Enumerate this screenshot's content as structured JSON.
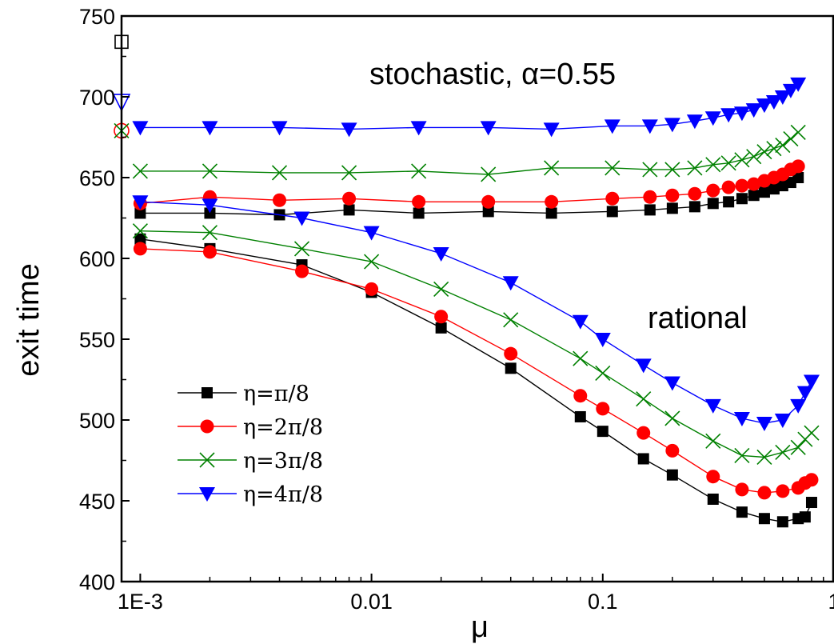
{
  "chart_data": {
    "type": "scatter",
    "xscale": "log",
    "xlabel": "μ",
    "ylabel": "exit time",
    "xlim": [
      0.00083,
      1
    ],
    "ylim": [
      400,
      750
    ],
    "xticks": [
      {
        "value": 0.001,
        "label": "1E-3"
      },
      {
        "value": 0.01,
        "label": "0.01"
      },
      {
        "value": 0.1,
        "label": "0.1"
      },
      {
        "value": 1,
        "label": "1"
      }
    ],
    "yticks": [
      400,
      450,
      500,
      550,
      600,
      650,
      700,
      750
    ],
    "annotations": [
      {
        "text": "stochastic, α=0.55",
        "near": "upper curves"
      },
      {
        "text": "rational",
        "near": "lower curves"
      }
    ],
    "series": [
      {
        "name": "η=π/8",
        "color": "#000000",
        "marker": "square",
        "stochastic": {
          "x": [
            0.001,
            0.002,
            0.004,
            0.008,
            0.016,
            0.032,
            0.06,
            0.11,
            0.16,
            0.2,
            0.25,
            0.3,
            0.35,
            0.4,
            0.45,
            0.5,
            0.55,
            0.6,
            0.65,
            0.7
          ],
          "y": [
            628,
            628,
            627,
            630,
            628,
            629,
            628,
            629,
            630,
            631,
            632,
            634,
            635,
            637,
            639,
            641,
            643,
            645,
            647,
            650
          ]
        },
        "rational": {
          "x": [
            0.001,
            0.002,
            0.005,
            0.01,
            0.02,
            0.04,
            0.08,
            0.1,
            0.15,
            0.2,
            0.3,
            0.4,
            0.5,
            0.6,
            0.7,
            0.75,
            0.8
          ],
          "y": [
            612,
            606,
            596,
            579,
            557,
            532,
            502,
            493,
            476,
            466,
            451,
            443,
            439,
            437,
            439,
            440,
            449
          ]
        },
        "single_point": {
          "x": 0.00083,
          "y": 734,
          "marker": "open-square"
        }
      },
      {
        "name": "η=2π/8",
        "color": "#ff0000",
        "marker": "circle",
        "stochastic": {
          "x": [
            0.001,
            0.002,
            0.004,
            0.008,
            0.016,
            0.032,
            0.06,
            0.11,
            0.16,
            0.2,
            0.25,
            0.3,
            0.35,
            0.4,
            0.45,
            0.5,
            0.55,
            0.6,
            0.65,
            0.7
          ],
          "y": [
            634,
            638,
            636,
            637,
            635,
            635,
            635,
            637,
            638,
            639,
            640,
            642,
            644,
            645,
            646,
            648,
            650,
            652,
            655,
            657
          ]
        },
        "rational": {
          "x": [
            0.001,
            0.002,
            0.005,
            0.01,
            0.02,
            0.04,
            0.08,
            0.1,
            0.15,
            0.2,
            0.3,
            0.4,
            0.5,
            0.6,
            0.7,
            0.75,
            0.8
          ],
          "y": [
            606,
            604,
            592,
            581,
            564,
            541,
            515,
            507,
            492,
            481,
            465,
            457,
            455,
            456,
            458,
            461,
            463
          ]
        },
        "single_point": {
          "x": 0.00083,
          "y": 679,
          "marker": "open-circle"
        }
      },
      {
        "name": "η=3π/8",
        "color": "#008000",
        "marker": "x",
        "stochastic": {
          "x": [
            0.001,
            0.002,
            0.004,
            0.008,
            0.016,
            0.032,
            0.06,
            0.11,
            0.16,
            0.2,
            0.25,
            0.3,
            0.35,
            0.4,
            0.45,
            0.5,
            0.55,
            0.6,
            0.65,
            0.7
          ],
          "y": [
            654,
            654,
            653,
            653,
            654,
            652,
            656,
            656,
            655,
            655,
            656,
            658,
            659,
            661,
            663,
            666,
            668,
            670,
            674,
            678
          ]
        },
        "rational": {
          "x": [
            0.001,
            0.002,
            0.005,
            0.01,
            0.02,
            0.04,
            0.08,
            0.1,
            0.15,
            0.2,
            0.3,
            0.4,
            0.5,
            0.6,
            0.7,
            0.75,
            0.8
          ],
          "y": [
            617,
            616,
            606,
            598,
            581,
            562,
            538,
            529,
            513,
            501,
            487,
            478,
            477,
            480,
            483,
            488,
            492
          ]
        },
        "single_point": {
          "x": 0.00083,
          "y": 679,
          "marker": "x"
        }
      },
      {
        "name": "η=4π/8",
        "color": "#0000ff",
        "marker": "triangle-down",
        "stochastic": {
          "x": [
            0.001,
            0.002,
            0.004,
            0.008,
            0.016,
            0.032,
            0.06,
            0.11,
            0.16,
            0.2,
            0.25,
            0.3,
            0.35,
            0.4,
            0.45,
            0.5,
            0.55,
            0.6,
            0.65,
            0.7
          ],
          "y": [
            681,
            681,
            681,
            680,
            681,
            681,
            680,
            682,
            682,
            683,
            685,
            687,
            689,
            690,
            692,
            695,
            697,
            700,
            704,
            708
          ]
        },
        "rational": {
          "x": [
            0.001,
            0.002,
            0.005,
            0.01,
            0.02,
            0.04,
            0.08,
            0.1,
            0.15,
            0.2,
            0.3,
            0.4,
            0.5,
            0.6,
            0.7,
            0.75,
            0.8
          ],
          "y": [
            635,
            633,
            625,
            616,
            603,
            585,
            561,
            550,
            534,
            523,
            509,
            501,
            498,
            500,
            509,
            517,
            524
          ]
        },
        "single_point": {
          "x": 0.00083,
          "y": 697,
          "marker": "open-triangle-down"
        }
      }
    ]
  }
}
